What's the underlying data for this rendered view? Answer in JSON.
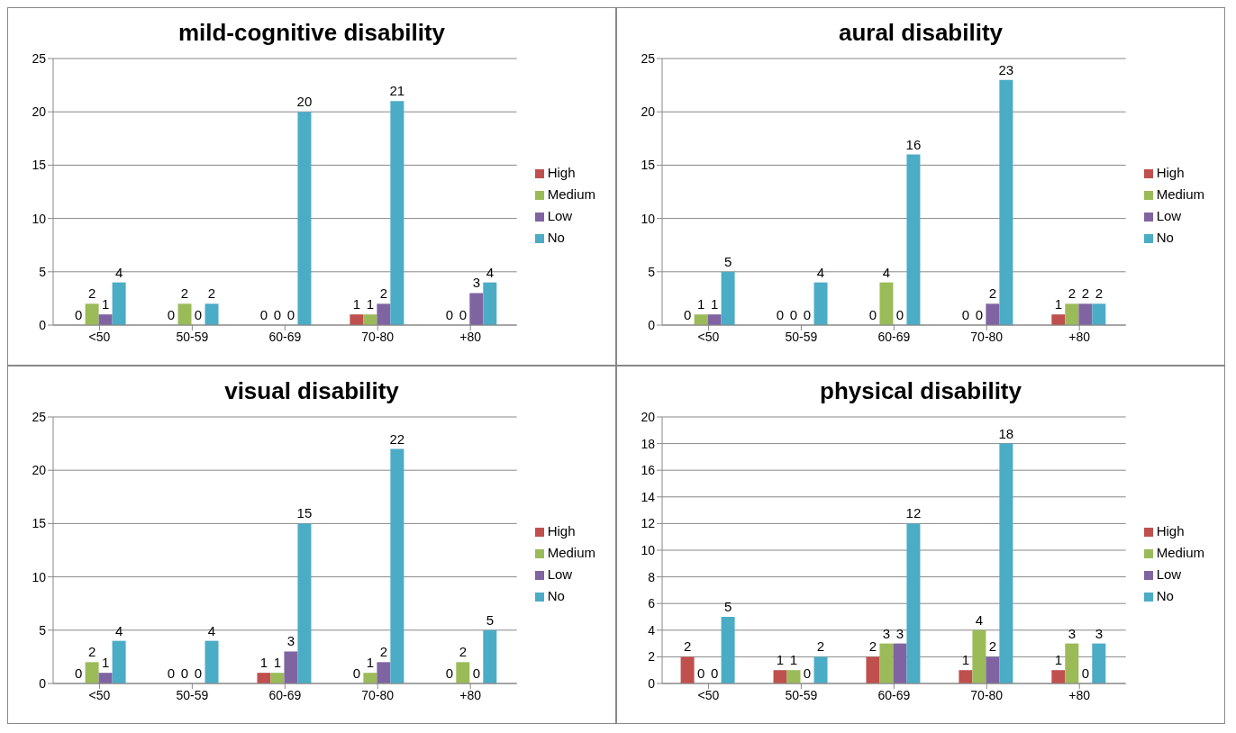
{
  "chart_data": [
    {
      "type": "bar",
      "title": "mild-cognitive disability",
      "categories": [
        "<50",
        "50-59",
        "60-69",
        "70-80",
        "+80"
      ],
      "series": [
        {
          "name": "High",
          "color": "#c0504d",
          "values": [
            0,
            0,
            0,
            1,
            0
          ]
        },
        {
          "name": "Medium",
          "color": "#9bbb59",
          "values": [
            2,
            2,
            0,
            1,
            0
          ]
        },
        {
          "name": "Low",
          "color": "#8064a2",
          "values": [
            1,
            0,
            0,
            2,
            3
          ]
        },
        {
          "name": "No",
          "color": "#4bacc6",
          "values": [
            4,
            2,
            20,
            21,
            4
          ]
        }
      ],
      "ylim": [
        0,
        25
      ],
      "yticks": [
        0,
        5,
        10,
        15,
        20,
        25
      ],
      "grid": "y",
      "legend": "right",
      "data_labels": true
    },
    {
      "type": "bar",
      "title": "aural disability",
      "categories": [
        "<50",
        "50-59",
        "60-69",
        "70-80",
        "+80"
      ],
      "series": [
        {
          "name": "High",
          "color": "#c0504d",
          "values": [
            0,
            0,
            0,
            0,
            1
          ]
        },
        {
          "name": "Medium",
          "color": "#9bbb59",
          "values": [
            1,
            0,
            4,
            0,
            2
          ]
        },
        {
          "name": "Low",
          "color": "#8064a2",
          "values": [
            1,
            0,
            0,
            2,
            2
          ]
        },
        {
          "name": "No",
          "color": "#4bacc6",
          "values": [
            5,
            4,
            16,
            23,
            2
          ]
        }
      ],
      "ylim": [
        0,
        25
      ],
      "yticks": [
        0,
        5,
        10,
        15,
        20,
        25
      ],
      "grid": "y",
      "legend": "right",
      "data_labels": true
    },
    {
      "type": "bar",
      "title": "visual disability",
      "categories": [
        "<50",
        "50-59",
        "60-69",
        "70-80",
        "+80"
      ],
      "series": [
        {
          "name": "High",
          "color": "#c0504d",
          "values": [
            0,
            0,
            1,
            0,
            0
          ]
        },
        {
          "name": "Medium",
          "color": "#9bbb59",
          "values": [
            2,
            0,
            1,
            1,
            2
          ]
        },
        {
          "name": "Low",
          "color": "#8064a2",
          "values": [
            1,
            0,
            3,
            2,
            0
          ]
        },
        {
          "name": "No",
          "color": "#4bacc6",
          "values": [
            4,
            4,
            15,
            22,
            5
          ]
        }
      ],
      "ylim": [
        0,
        25
      ],
      "yticks": [
        0,
        5,
        10,
        15,
        20,
        25
      ],
      "grid": "y",
      "legend": "right",
      "data_labels": true
    },
    {
      "type": "bar",
      "title": "physical disability",
      "categories": [
        "<50",
        "50-59",
        "60-69",
        "70-80",
        "+80"
      ],
      "series": [
        {
          "name": "High",
          "color": "#c0504d",
          "values": [
            2,
            1,
            2,
            1,
            1
          ]
        },
        {
          "name": "Medium",
          "color": "#9bbb59",
          "values": [
            0,
            1,
            3,
            4,
            3
          ]
        },
        {
          "name": "Low",
          "color": "#8064a2",
          "values": [
            0,
            0,
            3,
            2,
            0
          ]
        },
        {
          "name": "No",
          "color": "#4bacc6",
          "values": [
            5,
            2,
            12,
            18,
            3
          ]
        }
      ],
      "ylim": [
        0,
        20
      ],
      "yticks": [
        0,
        2,
        4,
        6,
        8,
        10,
        12,
        14,
        16,
        18,
        20
      ],
      "grid": "y",
      "legend": "right",
      "data_labels": true
    }
  ]
}
